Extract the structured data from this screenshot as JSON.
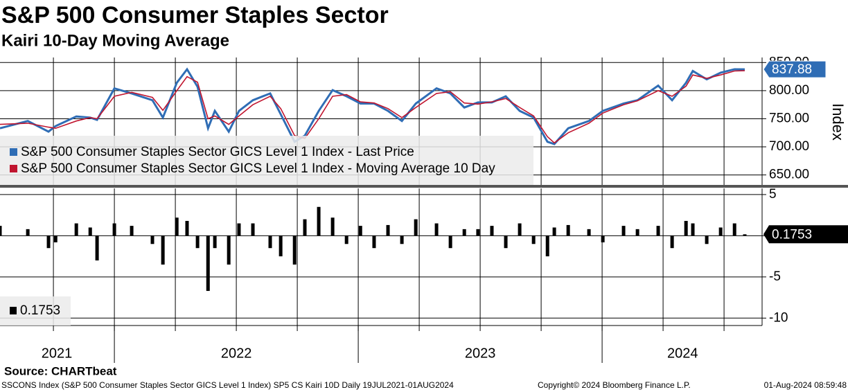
{
  "chart_data": [
    {
      "type": "line",
      "title": "S&P 500 Consumer Staples Sector",
      "subtitle": "Kairi 10-Day Moving Average",
      "y_label": "Index",
      "x": [
        2021.531,
        2021.645,
        2021.73,
        2021.759,
        2021.844,
        2021.901,
        2021.929,
        2022.0,
        2022.071,
        2022.156,
        2022.199,
        2022.256,
        2022.298,
        2022.341,
        2022.384,
        2022.412,
        2022.469,
        2022.511,
        2022.568,
        2022.639,
        2022.682,
        2022.739,
        2022.781,
        2022.838,
        2022.895,
        2022.952,
        2023.009,
        2023.065,
        2023.122,
        2023.179,
        2023.236,
        2023.321,
        2023.378,
        2023.435,
        2023.491,
        2023.548,
        2023.605,
        2023.662,
        2023.719,
        2023.776,
        2023.804,
        2023.861,
        2023.946,
        2024.003,
        2024.088,
        2024.145,
        2024.23,
        2024.287,
        2024.344,
        2024.372,
        2024.429,
        2024.486,
        2024.543,
        2024.585
      ],
      "series": [
        {
          "name": "S&P 500 Consumer Staples Sector GICS Level 1 Index - Last Price",
          "color": "#2f6db5",
          "values": [
            733,
            746,
            727,
            737,
            754,
            752,
            748,
            804,
            795,
            783,
            752,
            814,
            838,
            807,
            733,
            764,
            727,
            764,
            783,
            795,
            758,
            709,
            720,
            764,
            801,
            790,
            777,
            777,
            764,
            746,
            777,
            804,
            795,
            770,
            779,
            779,
            790,
            764,
            752,
            709,
            705,
            733,
            746,
            764,
            777,
            783,
            809,
            783,
            814,
            835,
            820,
            832,
            838,
            837.88
          ]
        },
        {
          "name": "S&P 500 Consumer Staples Sector GICS Level 1 Index - Moving Average 10 Day",
          "color": "#c0152f",
          "values": [
            740,
            742,
            735,
            733,
            746,
            752,
            750,
            790,
            797,
            788,
            765,
            800,
            825,
            815,
            750,
            755,
            740,
            755,
            775,
            790,
            768,
            720,
            715,
            750,
            790,
            793,
            780,
            778,
            768,
            752,
            770,
            795,
            798,
            778,
            776,
            780,
            786,
            770,
            755,
            718,
            707,
            725,
            742,
            760,
            775,
            782,
            800,
            790,
            808,
            828,
            822,
            828,
            835,
            835.5
          ]
        }
      ],
      "xlim": [
        2021.531,
        2024.656
      ],
      "xticks": [
        2021.75,
        2022,
        2022.25,
        2022.5,
        2022.75,
        2023,
        2023.25,
        2023.5,
        2023.75,
        2024,
        2024.25,
        2024.5
      ],
      "year_labels": [
        {
          "value": 2021.764,
          "label": "2021"
        },
        {
          "value": 2022.5,
          "label": "2022"
        },
        {
          "value": 2023.5,
          "label": "2023"
        },
        {
          "value": 2024.33,
          "label": "2024"
        }
      ],
      "year_separators": [
        2022,
        2023,
        2024
      ],
      "ylim": [
        631,
        859
      ],
      "yticks": [
        {
          "value": 650,
          "label": "650.00"
        },
        {
          "value": 700,
          "label": "700.00"
        },
        {
          "value": 750,
          "label": "750.00"
        },
        {
          "value": 800,
          "label": "800.00"
        },
        {
          "value": 850,
          "label": "850.00"
        }
      ],
      "grid": true
    },
    {
      "type": "bar",
      "x": [
        2021.531,
        2021.645,
        2021.73,
        2021.759,
        2021.844,
        2021.901,
        2021.929,
        2022.0,
        2022.071,
        2022.156,
        2022.199,
        2022.256,
        2022.298,
        2022.341,
        2022.384,
        2022.412,
        2022.469,
        2022.511,
        2022.568,
        2022.639,
        2022.682,
        2022.739,
        2022.781,
        2022.838,
        2022.895,
        2022.952,
        2023.009,
        2023.065,
        2023.122,
        2023.179,
        2023.236,
        2023.321,
        2023.378,
        2023.435,
        2023.491,
        2023.548,
        2023.605,
        2023.662,
        2023.719,
        2023.776,
        2023.804,
        2023.861,
        2023.946,
        2024.003,
        2024.088,
        2024.145,
        2024.23,
        2024.287,
        2024.344,
        2024.372,
        2024.429,
        2024.486,
        2024.543,
        2024.585
      ],
      "values": [
        1.2,
        0.8,
        -1.5,
        -0.8,
        1.5,
        1.0,
        -3.0,
        1.5,
        1.2,
        -1.0,
        -3.5,
        2.2,
        1.8,
        -1.5,
        -6.7,
        -1.5,
        -3.5,
        1.5,
        1.5,
        -1.5,
        -2.5,
        -3.5,
        2.0,
        3.5,
        2.2,
        -1.0,
        1.2,
        -1.5,
        1.3,
        -1.0,
        2.0,
        1.5,
        -1.5,
        0.8,
        0.8,
        1.2,
        -1.5,
        1.5,
        -1.0,
        -2.5,
        1.0,
        1.3,
        0.8,
        -0.8,
        1.2,
        0.8,
        1.2,
        -1.5,
        1.8,
        1.5,
        -1.0,
        1.0,
        1.5,
        0.1753
      ],
      "color": "#000000",
      "xlim": [
        2021.531,
        2024.656
      ],
      "xticks": [
        2021.75,
        2022,
        2022.25,
        2022.5,
        2022.75,
        2023,
        2023.25,
        2023.5,
        2023.75,
        2024,
        2024.25,
        2024.5
      ],
      "ylim": [
        -10.9,
        5.75
      ],
      "yticks": [
        -10,
        -5,
        0,
        5
      ],
      "grid": true
    }
  ],
  "footer": {
    "source": "Source: CHARTbeat",
    "description": "SSCONS Index (S&P 500 Consumer Staples Sector GICS Level 1 Index) SP5 CS Kairi 10D  Daily 19JUL2021-01AUG2024",
    "copyright": "Copyright© 2024 Bloomberg Finance L.P.",
    "timestamp": "01-Aug-2024 08:59:48"
  }
}
